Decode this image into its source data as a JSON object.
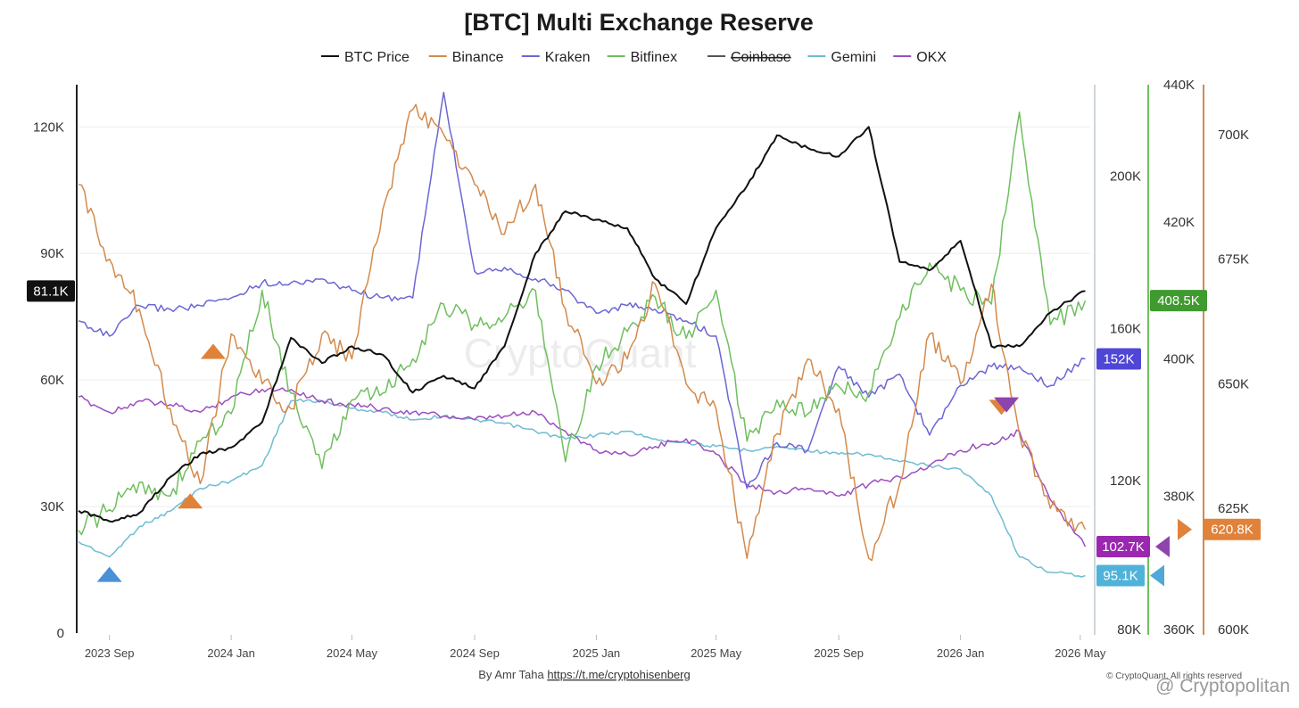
{
  "chart_data": {
    "type": "line",
    "title": "[BTC] Multi Exchange Reserve",
    "x_ticks": [
      "2023 Sep",
      "2024 Jan",
      "2024 May",
      "2024 Sep",
      "2025 Jan",
      "2025 May",
      "2025 Sep",
      "2026 Jan",
      "2026 May"
    ],
    "x_range": [
      "2023-08-15",
      "2026-05-25"
    ],
    "axes": [
      {
        "id": "price",
        "side": "left",
        "ticks": [
          "0",
          "30K",
          "60K",
          "90K",
          "120K"
        ],
        "range": [
          0,
          130000
        ]
      },
      {
        "id": "r1",
        "side": "right",
        "ticks": [
          "80K",
          "120K",
          "160K",
          "200K"
        ],
        "range": [
          80000,
          224000
        ]
      },
      {
        "id": "r2",
        "side": "right",
        "ticks": [
          "360K",
          "380K",
          "400K",
          "420K",
          "440K"
        ],
        "range": [
          360000,
          440000
        ]
      },
      {
        "id": "r3",
        "side": "right",
        "ticks": [
          "600K",
          "625K",
          "650K",
          "675K",
          "700K"
        ],
        "range": [
          600000,
          710000
        ]
      }
    ],
    "series": [
      {
        "name": "BTC Price",
        "color": "#111111",
        "axis": "price",
        "hidden": false,
        "last_label": "81.1K",
        "x": [
          "2023-08-15",
          "2023-09-15",
          "2023-10-15",
          "2023-11-15",
          "2023-12-15",
          "2024-01-15",
          "2024-02-15",
          "2024-03-15",
          "2024-04-15",
          "2024-05-15",
          "2024-06-15",
          "2024-07-15",
          "2024-08-15",
          "2024-09-15",
          "2024-10-15",
          "2024-11-15",
          "2024-12-15",
          "2025-01-15",
          "2025-02-15",
          "2025-03-15",
          "2025-04-15",
          "2025-05-15",
          "2025-06-15",
          "2025-07-15",
          "2025-08-15",
          "2025-09-15",
          "2025-10-15",
          "2025-11-15",
          "2025-12-15",
          "2026-01-15",
          "2026-02-15",
          "2026-03-15",
          "2026-04-15",
          "2026-05-20"
        ],
        "y": [
          29000,
          26500,
          28500,
          37000,
          42500,
          44000,
          50000,
          70000,
          64000,
          68000,
          66000,
          57000,
          61000,
          58000,
          68000,
          90000,
          100000,
          98000,
          96000,
          84000,
          78000,
          96000,
          106000,
          118000,
          115000,
          113000,
          120000,
          88000,
          86000,
          93000,
          68000,
          68000,
          76000,
          81100
        ]
      },
      {
        "name": "Binance",
        "color": "#d38a4b",
        "axis": "r3",
        "hidden": false,
        "last_label": "620.8K",
        "x": [
          "2023-08-15",
          "2023-09-15",
          "2023-10-15",
          "2023-11-15",
          "2023-12-15",
          "2024-01-15",
          "2024-02-15",
          "2024-03-15",
          "2024-04-15",
          "2024-05-15",
          "2024-06-15",
          "2024-07-15",
          "2024-08-15",
          "2024-09-15",
          "2024-10-15",
          "2024-11-15",
          "2024-12-15",
          "2025-01-15",
          "2025-02-15",
          "2025-03-15",
          "2025-04-15",
          "2025-05-15",
          "2025-06-15",
          "2025-07-15",
          "2025-08-15",
          "2025-09-15",
          "2025-10-15",
          "2025-11-15",
          "2025-12-15",
          "2026-01-15",
          "2026-02-15",
          "2026-03-15",
          "2026-04-15",
          "2026-05-20"
        ],
        "y": [
          690000,
          675000,
          665000,
          645000,
          630000,
          660000,
          650000,
          645000,
          660000,
          655000,
          685000,
          705000,
          700000,
          690000,
          680000,
          690000,
          665000,
          650000,
          655000,
          670000,
          650000,
          645000,
          615000,
          640000,
          655000,
          645000,
          615000,
          630000,
          660000,
          650000,
          670000,
          640000,
          625000,
          620800
        ]
      },
      {
        "name": "Kraken",
        "color": "#6b66d4",
        "axis": "r1",
        "hidden": false,
        "last_label": "152K",
        "x": [
          "2023-08-15",
          "2023-09-15",
          "2023-10-15",
          "2023-11-15",
          "2023-12-15",
          "2024-01-15",
          "2024-02-15",
          "2024-03-15",
          "2024-04-15",
          "2024-05-15",
          "2024-06-15",
          "2024-07-15",
          "2024-08-15",
          "2024-09-15",
          "2024-10-15",
          "2024-11-15",
          "2024-12-15",
          "2025-01-15",
          "2025-02-15",
          "2025-03-15",
          "2025-04-15",
          "2025-05-15",
          "2025-06-15",
          "2025-07-15",
          "2025-08-15",
          "2025-09-15",
          "2025-10-15",
          "2025-11-15",
          "2025-12-15",
          "2026-01-15",
          "2026-02-15",
          "2026-03-15",
          "2026-04-15",
          "2026-05-20"
        ],
        "y": [
          162000,
          158000,
          166000,
          165000,
          166000,
          168000,
          172000,
          172000,
          173000,
          170000,
          168000,
          168000,
          222000,
          175000,
          176000,
          173000,
          170000,
          164000,
          166000,
          165000,
          162000,
          158000,
          118000,
          130000,
          128000,
          150000,
          142000,
          148000,
          132000,
          145000,
          150000,
          150000,
          145000,
          152000
        ]
      },
      {
        "name": "Bitfinex",
        "color": "#6fbf5f",
        "axis": "r2",
        "hidden": false,
        "last_label": "408.5K",
        "x": [
          "2023-08-15",
          "2023-09-15",
          "2023-10-15",
          "2023-11-15",
          "2023-12-15",
          "2024-01-15",
          "2024-02-15",
          "2024-03-15",
          "2024-04-15",
          "2024-05-15",
          "2024-06-15",
          "2024-07-15",
          "2024-08-15",
          "2024-09-15",
          "2024-10-15",
          "2024-11-15",
          "2024-12-15",
          "2025-01-15",
          "2025-02-15",
          "2025-03-15",
          "2025-04-15",
          "2025-05-15",
          "2025-06-15",
          "2025-07-15",
          "2025-08-15",
          "2025-09-15",
          "2025-10-15",
          "2025-11-15",
          "2025-12-15",
          "2026-01-15",
          "2026-02-15",
          "2026-03-15",
          "2026-04-15",
          "2026-05-20"
        ],
        "y": [
          375000,
          378000,
          382000,
          380000,
          388000,
          392000,
          410000,
          395000,
          384000,
          394000,
          395000,
          400000,
          408000,
          405000,
          406000,
          410000,
          385000,
          399000,
          404000,
          409000,
          403000,
          410000,
          388000,
          394000,
          392000,
          396000,
          395000,
          406000,
          414000,
          410000,
          408000,
          436000,
          405000,
          408500
        ]
      },
      {
        "name": "Coinbase",
        "color": "#555555",
        "axis": "price",
        "hidden": true,
        "x": [],
        "y": []
      },
      {
        "name": "Gemini",
        "color": "#6fbcd2",
        "axis": "r1",
        "hidden": false,
        "last_label": "95.1K",
        "x": [
          "2023-08-15",
          "2023-09-15",
          "2023-10-15",
          "2023-11-15",
          "2023-12-15",
          "2024-01-15",
          "2024-02-15",
          "2024-03-15",
          "2024-04-15",
          "2024-05-15",
          "2024-06-15",
          "2024-07-15",
          "2024-08-15",
          "2024-09-15",
          "2024-10-15",
          "2024-11-15",
          "2024-12-15",
          "2025-01-15",
          "2025-02-15",
          "2025-03-15",
          "2025-04-15",
          "2025-05-15",
          "2025-06-15",
          "2025-07-15",
          "2025-08-15",
          "2025-09-15",
          "2025-10-15",
          "2025-11-15",
          "2025-12-15",
          "2026-01-15",
          "2026-02-15",
          "2026-03-15",
          "2026-04-15",
          "2026-05-20"
        ],
        "y": [
          104000,
          100000,
          108000,
          112000,
          118000,
          120000,
          124000,
          141000,
          141000,
          139000,
          138000,
          136000,
          137000,
          136000,
          135000,
          133000,
          131000,
          132000,
          133000,
          131000,
          130000,
          129000,
          128000,
          129000,
          128000,
          127000,
          127000,
          125000,
          124000,
          123000,
          116000,
          100000,
          96000,
          95100
        ]
      },
      {
        "name": "OKX",
        "color": "#9b4fc0",
        "axis": "r1",
        "hidden": false,
        "last_label": "102.7K",
        "x": [
          "2023-08-15",
          "2023-09-15",
          "2023-10-15",
          "2023-11-15",
          "2023-12-15",
          "2024-01-15",
          "2024-02-15",
          "2024-03-15",
          "2024-04-15",
          "2024-05-15",
          "2024-06-15",
          "2024-07-15",
          "2024-08-15",
          "2024-09-15",
          "2024-10-15",
          "2024-11-15",
          "2024-12-15",
          "2025-01-15",
          "2025-02-15",
          "2025-03-15",
          "2025-04-15",
          "2025-05-15",
          "2025-06-15",
          "2025-07-15",
          "2025-08-15",
          "2025-09-15",
          "2025-10-15",
          "2025-11-15",
          "2025-12-15",
          "2026-01-15",
          "2026-02-15",
          "2026-03-15",
          "2026-04-15",
          "2026-05-20"
        ],
        "y": [
          142000,
          138000,
          141000,
          140000,
          138000,
          142000,
          144000,
          144000,
          141000,
          140000,
          139000,
          138000,
          137000,
          136000,
          137000,
          138000,
          133000,
          128000,
          127000,
          129000,
          131000,
          127000,
          119000,
          117000,
          118000,
          116000,
          119000,
          121000,
          124000,
          128000,
          130000,
          133000,
          115000,
          102700
        ]
      }
    ],
    "annotations": {
      "markers": [
        {
          "shape": "triangle-up",
          "color": "#4a90d9",
          "x": "2023-09-15",
          "series": "Gemini"
        },
        {
          "shape": "triangle-up",
          "color": "#e0823a",
          "x": "2023-12-05",
          "series": "Binance"
        },
        {
          "shape": "triangle-up",
          "color": "#e0823a",
          "x": "2023-12-28",
          "series": "Binance"
        },
        {
          "shape": "triangle-down",
          "color": "#e0823a",
          "x": "2026-02-25",
          "series": "Binance"
        },
        {
          "shape": "triangle-down",
          "color": "#8e44ad",
          "x": "2026-03-02",
          "series": "OKX"
        }
      ]
    },
    "grid": true,
    "legend_position": "top-center",
    "watermark": "CryptoQuant",
    "footer": {
      "prefix": "By Amr Taha ",
      "link": "https://t.me/cryptohisenberg"
    },
    "copyright": "© CryptoQuant. All rights reserved",
    "brand": "@ Cryptopolitan"
  }
}
